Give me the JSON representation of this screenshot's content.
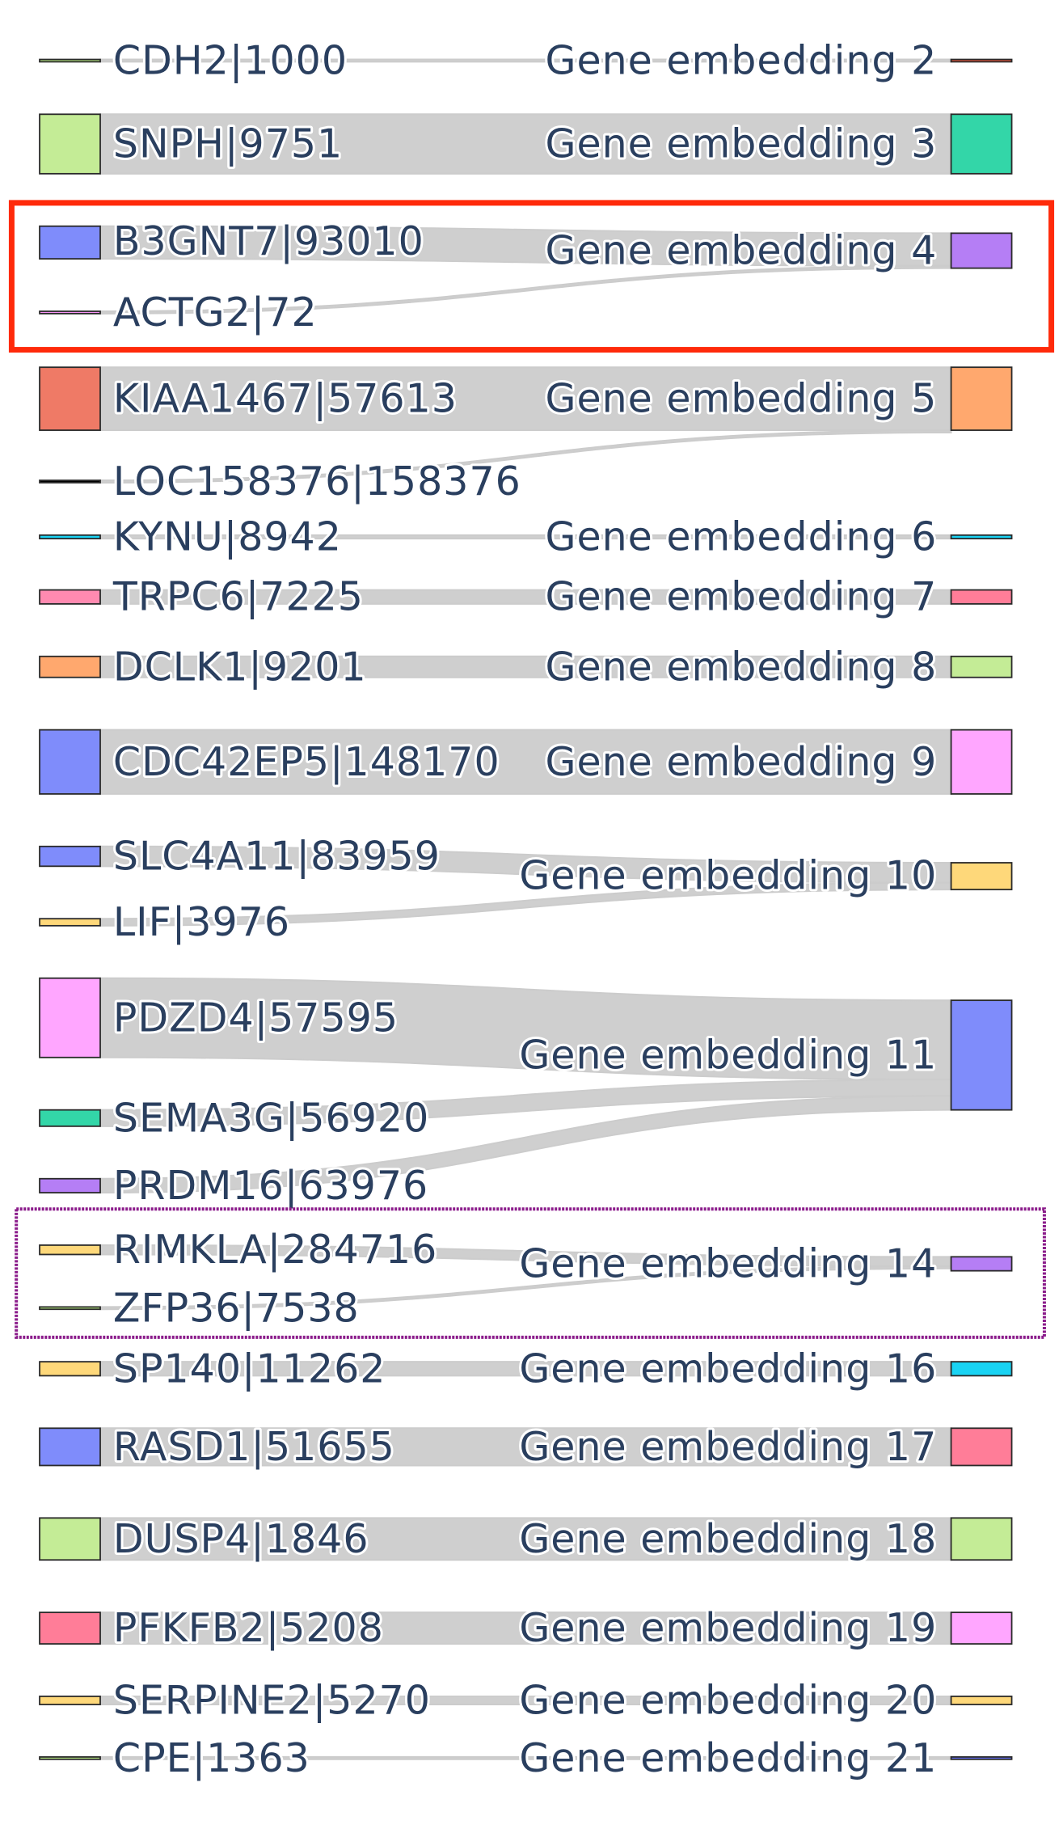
{
  "colors": {
    "link": "#cccccc",
    "label": "#2a3f5f",
    "highlight_red": "#ff2a0a",
    "highlight_purple": "#8b1c8b"
  },
  "sankey": {
    "sources": [
      {
        "label": "CDH2|1000",
        "color": "#b6e880"
      },
      {
        "label": "SNPH|9751",
        "color": "#c4ec96"
      },
      {
        "label": "B3GNT7|93010",
        "color": "#7f8cfb"
      },
      {
        "label": "ACTG2|72",
        "color": "#ff97ff"
      },
      {
        "label": "KIAA1467|57613",
        "color": "#ef7a66"
      },
      {
        "label": "LOC158376|158376",
        "color": "#000000"
      },
      {
        "label": "KYNU|8942",
        "color": "#19d3f3"
      },
      {
        "label": "TRPC6|7225",
        "color": "#ff8ab0"
      },
      {
        "label": "DCLK1|9201",
        "color": "#ffa86e"
      },
      {
        "label": "CDC42EP5|148170",
        "color": "#7f8cfb"
      },
      {
        "label": "SLC4A11|83959",
        "color": "#7f8cfb"
      },
      {
        "label": "LIF|3976",
        "color": "#fed87a"
      },
      {
        "label": "PDZD4|57595",
        "color": "#ffa6ff"
      },
      {
        "label": "SEMA3G|56920",
        "color": "#33d6a8"
      },
      {
        "label": "PRDM16|63976",
        "color": "#b57ef5"
      },
      {
        "label": "RIMKLA|284716",
        "color": "#fed87a"
      },
      {
        "label": "ZFP36|7538",
        "color": "#b6e880"
      },
      {
        "label": "SP140|11262",
        "color": "#fed87a"
      },
      {
        "label": "RASD1|51655",
        "color": "#7f8cfb"
      },
      {
        "label": "DUSP4|1846",
        "color": "#c4ec96"
      },
      {
        "label": "PFKFB2|5208",
        "color": "#ff7d98"
      },
      {
        "label": "SERPINE2|5270",
        "color": "#fed87a"
      },
      {
        "label": "CPE|1363",
        "color": "#b6e880"
      }
    ],
    "targets": [
      {
        "label": "Gene embedding 2",
        "color": "#ef553b"
      },
      {
        "label": "Gene embedding 3",
        "color": "#33d6a8"
      },
      {
        "label": "Gene embedding 4",
        "color": "#b57ef5"
      },
      {
        "label": "Gene embedding 5",
        "color": "#ffa86e"
      },
      {
        "label": "Gene embedding 6",
        "color": "#19d3f3"
      },
      {
        "label": "Gene embedding 7",
        "color": "#ff7d98"
      },
      {
        "label": "Gene embedding 8",
        "color": "#c4ec96"
      },
      {
        "label": "Gene embedding 9",
        "color": "#ffa6ff"
      },
      {
        "label": "Gene embedding 10",
        "color": "#fed87a"
      },
      {
        "label": "Gene embedding 11",
        "color": "#7f8cfb"
      },
      {
        "label": "Gene embedding 14",
        "color": "#b57ef5"
      },
      {
        "label": "Gene embedding 16",
        "color": "#19d3f3"
      },
      {
        "label": "Gene embedding 17",
        "color": "#ff7d98"
      },
      {
        "label": "Gene embedding 18",
        "color": "#c4ec96"
      },
      {
        "label": "Gene embedding 19",
        "color": "#ffa6ff"
      },
      {
        "label": "Gene embedding 20",
        "color": "#fed87a"
      },
      {
        "label": "Gene embedding 21",
        "color": "#636efa"
      }
    ],
    "links": [
      {
        "source": "CDH2|1000",
        "target": "Gene embedding 2"
      },
      {
        "source": "SNPH|9751",
        "target": "Gene embedding 3"
      },
      {
        "source": "B3GNT7|93010",
        "target": "Gene embedding 4"
      },
      {
        "source": "ACTG2|72",
        "target": "Gene embedding 4"
      },
      {
        "source": "KIAA1467|57613",
        "target": "Gene embedding 5"
      },
      {
        "source": "LOC158376|158376",
        "target": "Gene embedding 5"
      },
      {
        "source": "KYNU|8942",
        "target": "Gene embedding 6"
      },
      {
        "source": "TRPC6|7225",
        "target": "Gene embedding 7"
      },
      {
        "source": "DCLK1|9201",
        "target": "Gene embedding 8"
      },
      {
        "source": "CDC42EP5|148170",
        "target": "Gene embedding 9"
      },
      {
        "source": "SLC4A11|83959",
        "target": "Gene embedding 10"
      },
      {
        "source": "LIF|3976",
        "target": "Gene embedding 10"
      },
      {
        "source": "PDZD4|57595",
        "target": "Gene embedding 11"
      },
      {
        "source": "SEMA3G|56920",
        "target": "Gene embedding 11"
      },
      {
        "source": "PRDM16|63976",
        "target": "Gene embedding 11"
      },
      {
        "source": "RIMKLA|284716",
        "target": "Gene embedding 14"
      },
      {
        "source": "ZFP36|7538",
        "target": "Gene embedding 14"
      },
      {
        "source": "SP140|11262",
        "target": "Gene embedding 16"
      },
      {
        "source": "RASD1|51655",
        "target": "Gene embedding 17"
      },
      {
        "source": "DUSP4|1846",
        "target": "Gene embedding 18"
      },
      {
        "source": "PFKFB2|5208",
        "target": "Gene embedding 19"
      },
      {
        "source": "SERPINE2|5270",
        "target": "Gene embedding 20"
      },
      {
        "source": "CPE|1363",
        "target": "Gene embedding 21"
      }
    ]
  },
  "highlights": [
    {
      "style": "solid",
      "color": "#ff2a0a",
      "targets": [
        "Gene embedding 4"
      ]
    },
    {
      "style": "rough",
      "color": "#8b1c8b",
      "targets": [
        "Gene embedding 14"
      ]
    }
  ]
}
